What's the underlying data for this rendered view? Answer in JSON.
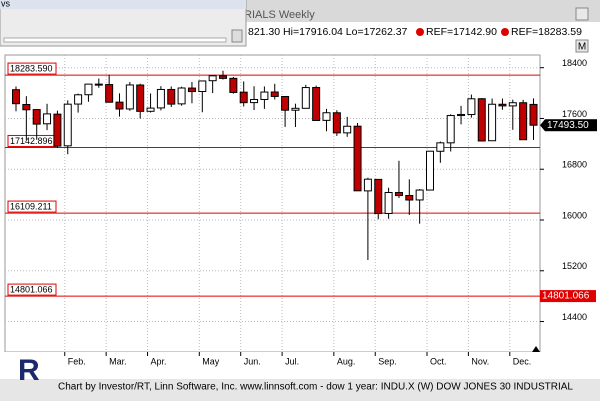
{
  "chart_data": {
    "type": "candlestick",
    "title": "RIALS Weekly",
    "header": "821.30 Hi=17916.04 Lo=17262.37",
    "ref_labels": [
      "REF=17142.90",
      "REF=18283.59"
    ],
    "window_title": "vs",
    "corner_button": "M",
    "footer": "Chart by Investor/RT, Linn Software, Inc. www.linnsoft.com - dow 1 year: INDU.X (W) DOW JONES 30 INDUSTRIAL",
    "categories": [
      null,
      null,
      null,
      null,
      null,
      "Feb.",
      null,
      null,
      null,
      "Mar.",
      null,
      null,
      null,
      "Apr.",
      null,
      null,
      null,
      null,
      "May",
      null,
      null,
      null,
      "Jun.",
      null,
      null,
      null,
      "Jul.",
      null,
      null,
      null,
      null,
      "Aug.",
      null,
      null,
      null,
      "Sep.",
      null,
      null,
      null,
      null,
      "Oct.",
      null,
      null,
      null,
      "Nov.",
      null,
      null,
      null,
      "Dec.",
      null,
      null
    ],
    "open": [
      18053,
      17820,
      17740,
      17516,
      17668,
      17169,
      17827,
      17974,
      18141,
      18134,
      17857,
      17750,
      18127,
      17713,
      17766,
      18057,
      17830,
      18079,
      18025,
      18195,
      18271,
      18232,
      18014,
      17850,
      17899,
      18017,
      17946,
      17730,
      17760,
      18088,
      17570,
      17690,
      17373,
      17478,
      16459,
      16640,
      16103,
      16433,
      16386,
      16316,
      16472,
      17083,
      17216,
      17646,
      17662,
      17911,
      17249,
      17824,
      17798,
      17848,
      17821.3
    ],
    "high": [
      18103,
      17951,
      17740,
      17831,
      17723,
      17885,
      17992,
      18137,
      18229,
      18288,
      17995,
      18174,
      18147,
      17994,
      18109,
      18105,
      18101,
      18175,
      18191,
      18285,
      18351,
      18254,
      18184,
      18108,
      18105,
      18147,
      17948,
      17833,
      18129,
      18117,
      17752,
      17730,
      17626,
      17529,
      16666,
      16645,
      16509,
      16933,
      16641,
      16488,
      17084,
      17236,
      17666,
      17799,
      17977,
      17920,
      17914,
      17914,
      17896,
      17894,
      17916.04
    ],
    "low": [
      17713,
      17262,
      17265,
      17416,
      17136,
      17037,
      17692,
      17863,
      18084,
      17849,
      17629,
      17720,
      17599,
      17694,
      17727,
      17781,
      17801,
      17840,
      17698,
      18000,
      18213,
      17991,
      17789,
      17733,
      17751,
      17900,
      17466,
      17465,
      17758,
      17567,
      17399,
      17325,
      17310,
      16458,
      15370,
      16012,
      16019,
      16346,
      16080,
      15942,
      16472,
      16901,
      17079,
      17507,
      17613,
      17245,
      17249,
      17737,
      17421,
      17261,
      17262.37
    ],
    "close": [
      17833,
      17737,
      17511,
      17672,
      17165,
      17825,
      17973,
      18141,
      18133,
      17856,
      17749,
      18128,
      17712,
      17763,
      18057,
      17826,
      18080,
      18024,
      18191,
      18272,
      18232,
      18010,
      17849,
      17899,
      18016,
      17947,
      17730,
      17760,
      18087,
      17568,
      17690,
      17373,
      17477,
      16460,
      16643,
      16102,
      16433,
      16385,
      16315,
      16472,
      17084,
      17216,
      17646,
      17663,
      17910,
      17245,
      17824,
      17798,
      17848,
      17265,
      17493.5
    ],
    "last_close_label": "17493.50",
    "up_color": "#ffffff",
    "down_color": "#c00000",
    "ref_lines": [
      {
        "value": 18283.59,
        "label": "18283.590"
      },
      {
        "value": 17142.896,
        "label": "17142.896"
      },
      {
        "value": 16109.211,
        "label": "16109.211"
      },
      {
        "value": 14801.066,
        "label": "14801.066"
      }
    ],
    "ref_color": "#e00000",
    "ylim": [
      13920,
      19120
    ],
    "yticks": [
      18400,
      17600,
      16800,
      16000,
      15200,
      14400
    ],
    "grid": true
  }
}
